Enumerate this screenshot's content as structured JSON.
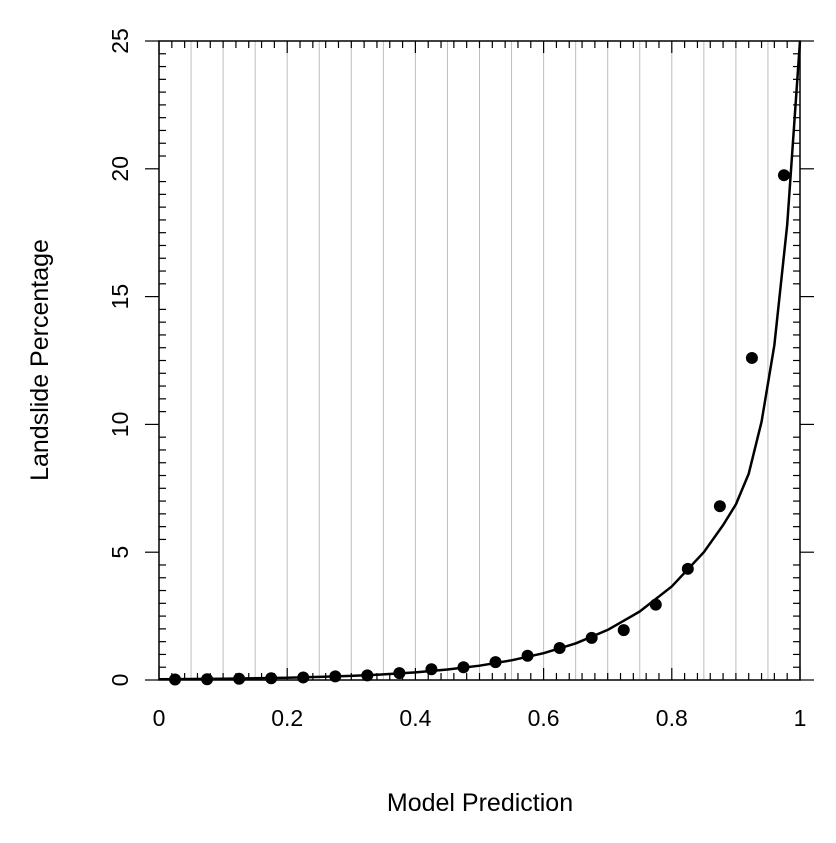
{
  "chart_data": {
    "type": "scatter",
    "title": "",
    "xlabel": "Model Prediction",
    "ylabel": "Landslide Percentage",
    "xlim": [
      0,
      1
    ],
    "ylim": [
      0,
      25
    ],
    "x_ticks": [
      0,
      0.2,
      0.4,
      0.6,
      0.8,
      1
    ],
    "x_tick_labels": [
      "0",
      "0.2",
      "0.4",
      "0.6",
      "0.8",
      "1"
    ],
    "y_ticks": [
      0,
      5,
      10,
      15,
      20,
      25
    ],
    "y_tick_labels": [
      "0",
      "5",
      "10",
      "15",
      "20",
      "25"
    ],
    "grid": "vertical lines every 0.05",
    "series": [
      {
        "type": "scatter",
        "x": [
          0.025,
          0.075,
          0.125,
          0.175,
          0.225,
          0.275,
          0.325,
          0.375,
          0.425,
          0.475,
          0.525,
          0.575,
          0.625,
          0.675,
          0.725,
          0.775,
          0.825,
          0.875,
          0.925,
          0.975
        ],
        "y": [
          0.02,
          0.03,
          0.05,
          0.07,
          0.1,
          0.14,
          0.18,
          0.27,
          0.42,
          0.5,
          0.7,
          0.95,
          1.25,
          1.65,
          1.95,
          2.95,
          4.35,
          6.8,
          12.6,
          19.75
        ],
        "color": "#000000"
      },
      {
        "type": "line",
        "x": [
          0,
          0.05,
          0.1,
          0.15,
          0.2,
          0.25,
          0.3,
          0.35,
          0.4,
          0.45,
          0.5,
          0.55,
          0.6,
          0.65,
          0.7,
          0.75,
          0.8,
          0.85,
          0.88,
          0.9,
          0.92,
          0.94,
          0.96,
          0.98,
          1.0
        ],
        "y": [
          0.03,
          0.04,
          0.05,
          0.07,
          0.09,
          0.12,
          0.16,
          0.22,
          0.3,
          0.41,
          0.56,
          0.77,
          1.05,
          1.43,
          1.96,
          2.68,
          3.66,
          5.0,
          6.06,
          6.87,
          8.07,
          10.1,
          13.1,
          17.8,
          25.0
        ],
        "color": "#000000"
      }
    ]
  }
}
